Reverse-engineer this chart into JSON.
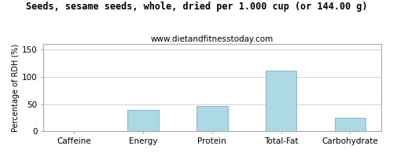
{
  "title": "Seeds, sesame seeds, whole, dried per 1.000 cup (or 144.00 g)",
  "subtitle": "www.dietandfitnesstoday.com",
  "categories": [
    "Caffeine",
    "Energy",
    "Protein",
    "Total-Fat",
    "Carbohydrate"
  ],
  "values": [
    0,
    40,
    46,
    111,
    25
  ],
  "bar_color": "#add8e6",
  "bar_edge_color": "#88b8cc",
  "ylabel": "Percentage of RDH (%)",
  "ylim": [
    0,
    160
  ],
  "yticks": [
    0,
    50,
    100,
    150
  ],
  "background_color": "#ffffff",
  "plot_bg_color": "#ffffff",
  "title_fontsize": 8.5,
  "subtitle_fontsize": 7.5,
  "axis_label_fontsize": 7,
  "tick_fontsize": 7.5,
  "grid_color": "#cccccc",
  "border_color": "#aaaaaa"
}
